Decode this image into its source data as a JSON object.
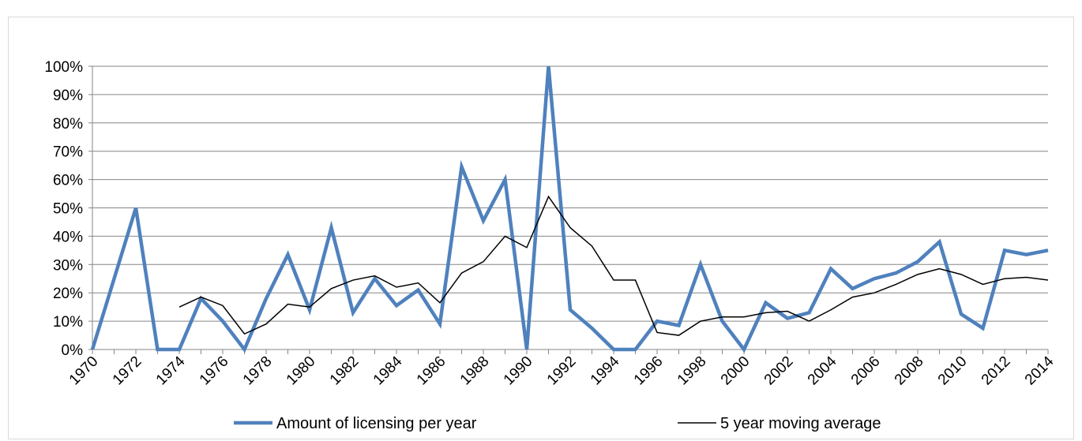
{
  "chart_data": {
    "type": "line",
    "title": "",
    "xlabel": "",
    "ylabel": "",
    "ylim": [
      0,
      1
    ],
    "y_ticks": [
      "0%",
      "10%",
      "20%",
      "30%",
      "40%",
      "50%",
      "60%",
      "70%",
      "80%",
      "90%",
      "100%"
    ],
    "grid": true,
    "legend_position": "bottom",
    "x": [
      1970,
      1971,
      1972,
      1973,
      1974,
      1975,
      1976,
      1977,
      1978,
      1979,
      1980,
      1981,
      1982,
      1983,
      1984,
      1985,
      1986,
      1987,
      1988,
      1989,
      1990,
      1991,
      1992,
      1993,
      1994,
      1995,
      1996,
      1997,
      1998,
      1999,
      2000,
      2001,
      2002,
      2003,
      2004,
      2005,
      2006,
      2007,
      2008,
      2009,
      2010,
      2011,
      2012,
      2013,
      2014
    ],
    "x_tick_labels": [
      "1970",
      "1972",
      "1974",
      "1976",
      "1978",
      "1980",
      "1982",
      "1984",
      "1986",
      "1988",
      "1990",
      "1992",
      "1994",
      "1996",
      "1998",
      "2000",
      "2002",
      "2004",
      "2006",
      "2008",
      "2010",
      "2012",
      "2014"
    ],
    "series": [
      {
        "name": "Amount of licensing per year",
        "color": "#4f81bd",
        "values": [
          0,
          0.25,
          0.5,
          0,
          0,
          0.18,
          0.1,
          0,
          0.18,
          0.335,
          0.14,
          0.43,
          0.13,
          0.25,
          0.155,
          0.21,
          0.09,
          0.645,
          0.455,
          0.6,
          0,
          1.0,
          0.14,
          0.075,
          0,
          0,
          0.1,
          0.085,
          0.3,
          0.1,
          0,
          0.165,
          0.11,
          0.13,
          0.285,
          0.215,
          0.25,
          0.27,
          0.31,
          0.38,
          0.125,
          0.075,
          0.35,
          0.335,
          0.35
        ]
      },
      {
        "name": "5 year moving average",
        "color": "#000000",
        "values": [
          null,
          null,
          null,
          null,
          0.15,
          0.185,
          0.155,
          0.055,
          0.09,
          0.16,
          0.15,
          0.215,
          0.245,
          0.26,
          0.22,
          0.235,
          0.165,
          0.27,
          0.31,
          0.4,
          0.36,
          0.54,
          0.43,
          0.365,
          0.245,
          0.245,
          0.06,
          0.05,
          0.1,
          0.115,
          0.115,
          0.13,
          0.135,
          0.1,
          0.14,
          0.185,
          0.2,
          0.23,
          0.265,
          0.285,
          0.265,
          0.23,
          0.25,
          0.255,
          0.245
        ]
      }
    ]
  }
}
